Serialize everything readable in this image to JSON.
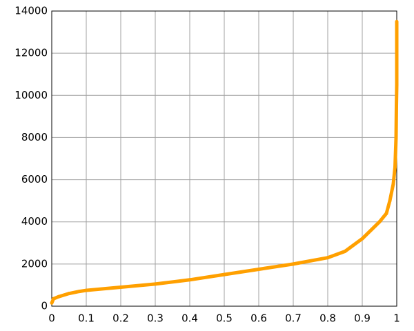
{
  "chart_data": {
    "type": "line",
    "x": [
      0,
      0.005,
      0.02,
      0.05,
      0.08,
      0.1,
      0.2,
      0.3,
      0.4,
      0.5,
      0.6,
      0.7,
      0.8,
      0.85,
      0.9,
      0.95,
      0.97,
      0.98,
      0.99,
      0.995,
      0.998,
      0.999,
      1,
      1
    ],
    "series": [
      {
        "color": "#ffa000",
        "values": [
          150,
          350,
          450,
          600,
          700,
          750,
          900,
          1050,
          1250,
          1500,
          1750,
          2000,
          2300,
          2600,
          3200,
          4000,
          4400,
          5000,
          5800,
          6600,
          8000,
          9500,
          10500,
          13500
        ]
      }
    ],
    "xlim": [
      0,
      1
    ],
    "xticks": [
      0,
      0.1,
      0.2,
      0.3,
      0.4,
      0.5,
      0.6,
      0.7,
      0.8,
      0.9,
      1
    ],
    "ylim": [
      0,
      14000
    ],
    "yticks": [
      0,
      2000,
      4000,
      6000,
      8000,
      10000,
      12000,
      14000
    ],
    "grid": true
  }
}
